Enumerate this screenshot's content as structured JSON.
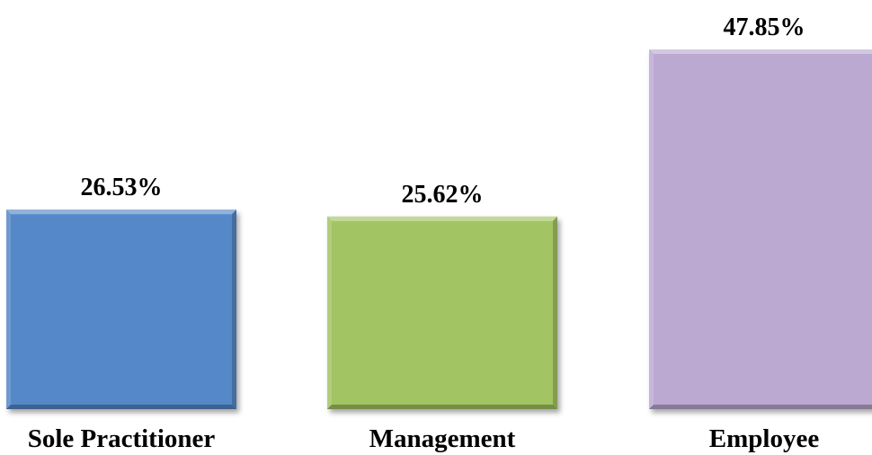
{
  "chart_data": {
    "type": "bar",
    "categories": [
      "Sole Practitioner",
      "Management",
      "Employee"
    ],
    "values": [
      26.53,
      25.62,
      47.85
    ],
    "data_labels": [
      "26.53%",
      "25.62%",
      "47.85%"
    ],
    "colors": [
      "#5588c8",
      "#a3c464",
      "#bca9d2"
    ],
    "title": "",
    "xlabel": "",
    "ylabel": "",
    "ylim": [
      0,
      50
    ],
    "grid": false,
    "legend": "none"
  }
}
